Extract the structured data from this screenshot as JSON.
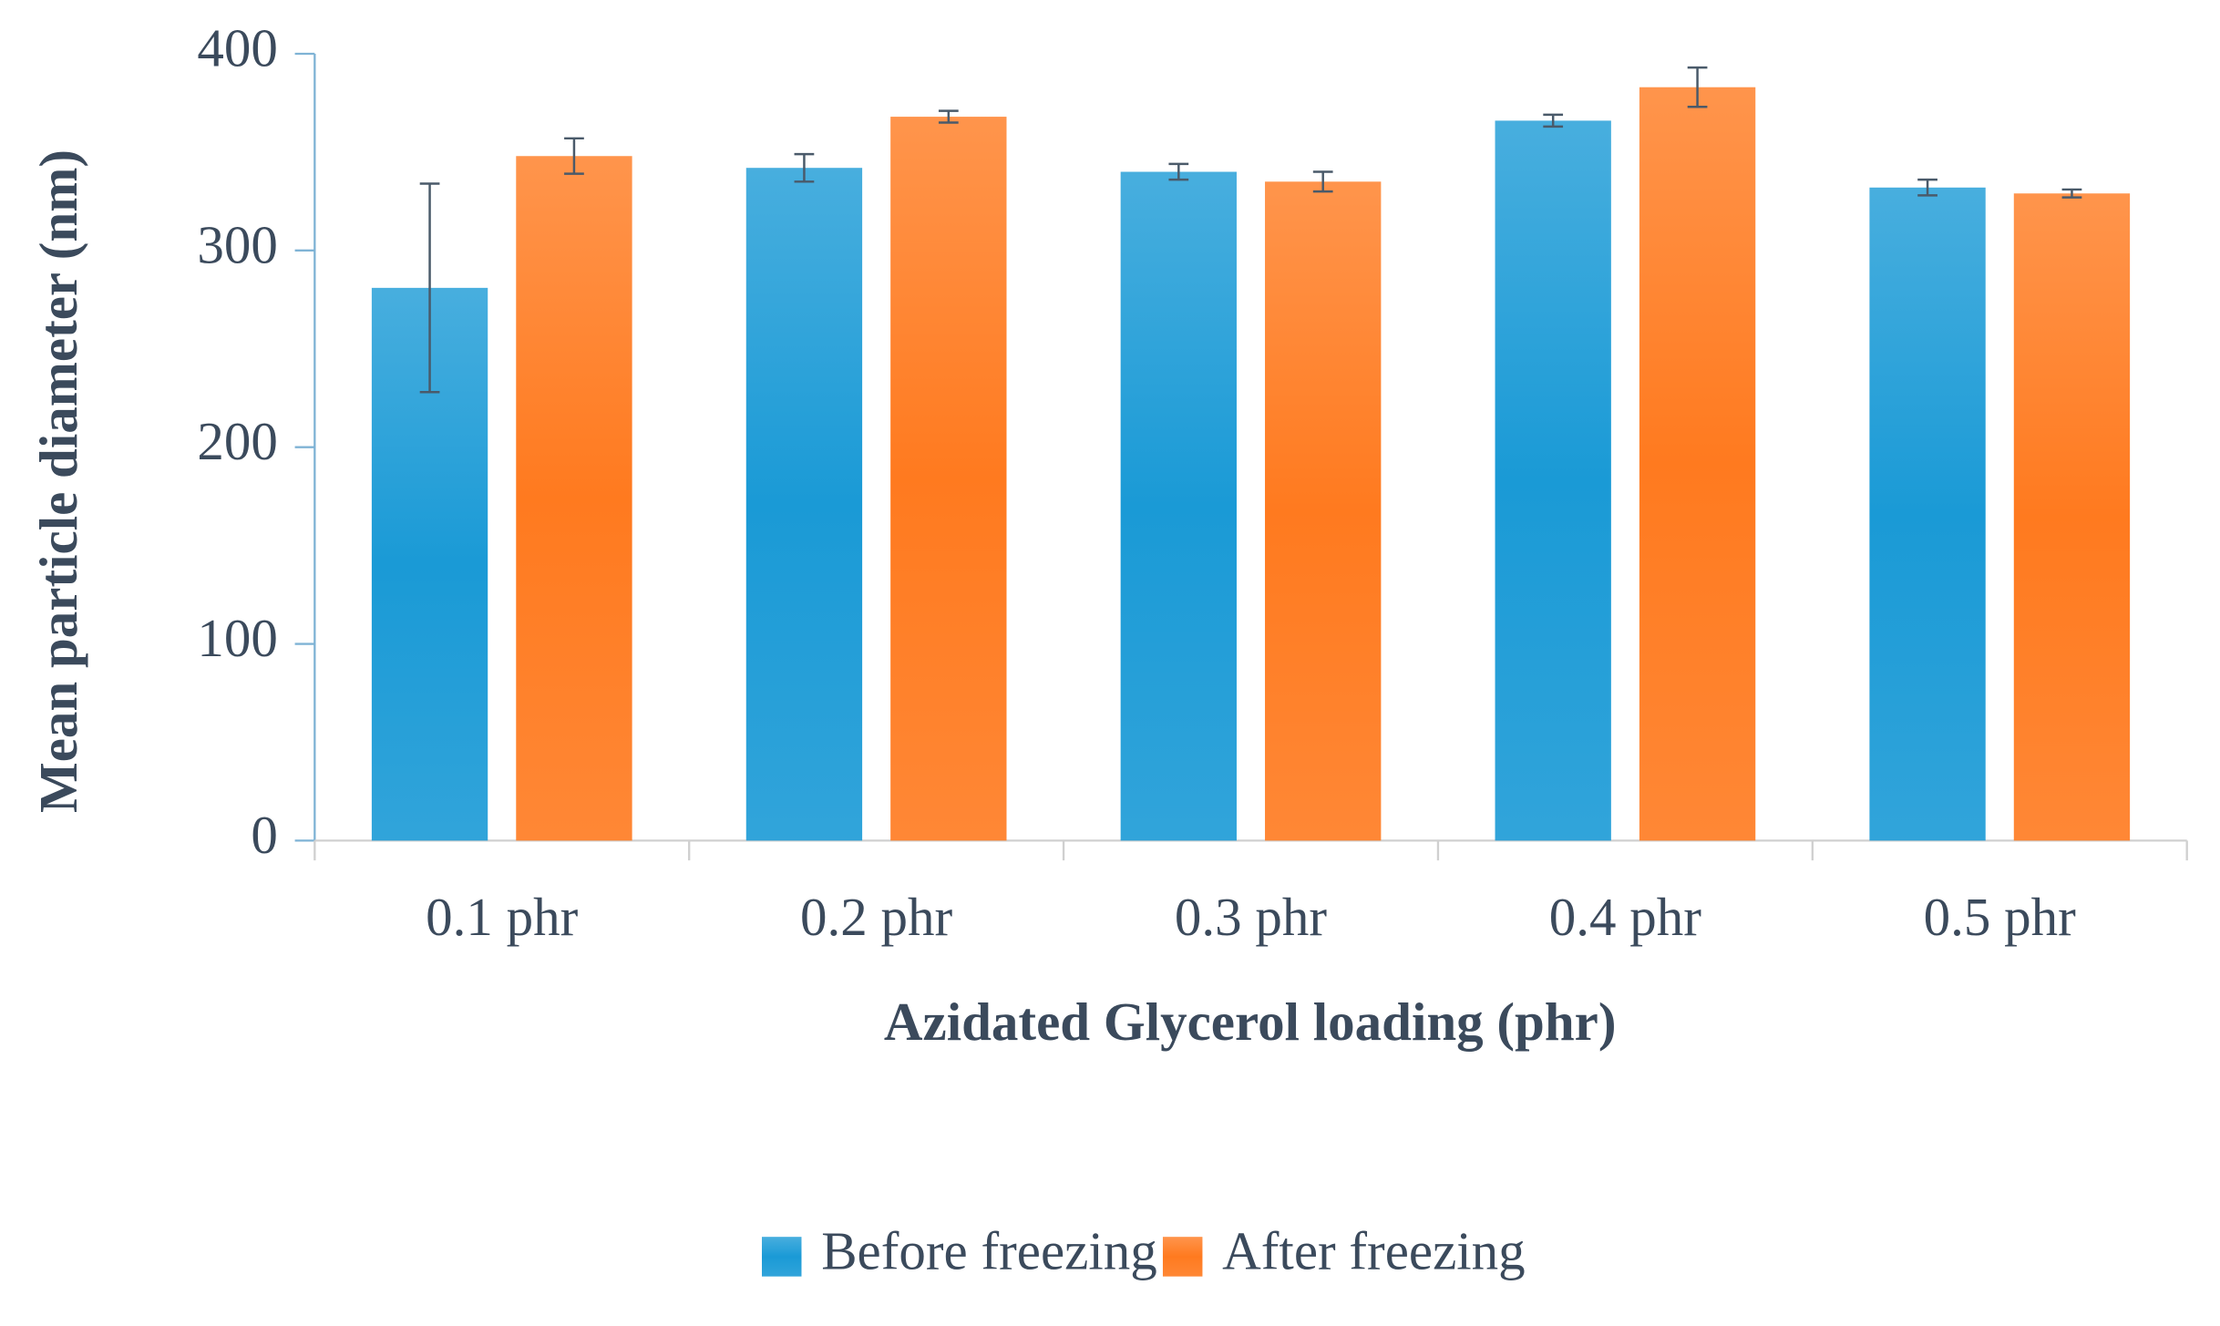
{
  "chart_data": {
    "type": "bar",
    "x_label": "Azidated Glycerol loading (phr)",
    "y_label": "Mean particle diameter (nm)",
    "categories": [
      "0.1 phr",
      "0.2 phr",
      "0.3 phr",
      "0.4 phr",
      "0.5 phr"
    ],
    "series": [
      {
        "name": "Before freezing",
        "color": "#1a9ad6",
        "values": [
          281,
          342,
          340,
          366,
          332
        ],
        "errors": [
          53,
          7,
          4,
          3,
          4
        ]
      },
      {
        "name": "After freezing",
        "color": "#ff7a1f",
        "values": [
          348,
          368,
          335,
          383,
          329
        ],
        "errors": [
          9,
          3,
          5,
          10,
          2
        ]
      }
    ],
    "ylim": [
      0,
      400
    ],
    "yticks": [
      0,
      100,
      200,
      300,
      400
    ],
    "grid": false,
    "legend": "bottom"
  }
}
